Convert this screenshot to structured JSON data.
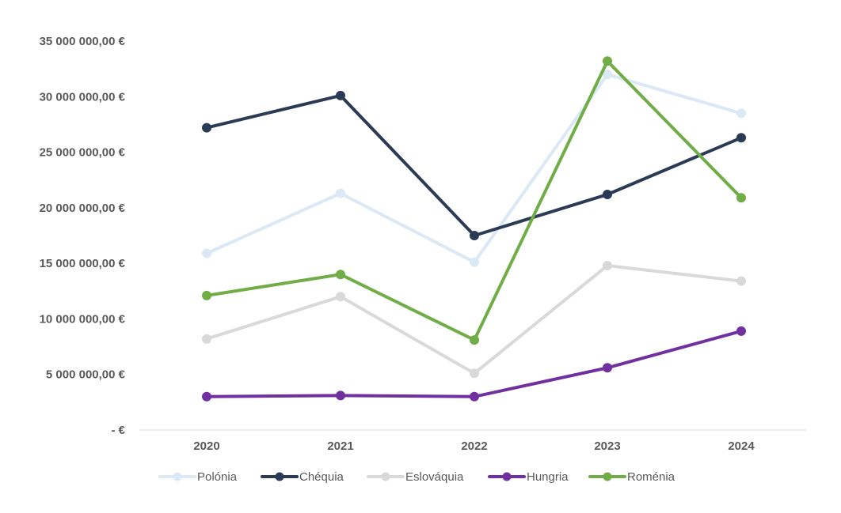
{
  "chart_data": {
    "type": "line",
    "x": [
      "2020",
      "2021",
      "2022",
      "2023",
      "2024"
    ],
    "ylim": [
      0,
      35000000
    ],
    "y_ticks": [
      0,
      5000000,
      10000000,
      15000000,
      20000000,
      25000000,
      30000000,
      35000000
    ],
    "y_tick_labels": [
      "-  €",
      "5 000 000,00 €",
      "10 000 000,00 €",
      "15 000 000,00 €",
      "20 000 000,00 €",
      "25 000 000,00 €",
      "30 000 000,00 €",
      "35 000 000,00 €"
    ],
    "grid": false,
    "legend_position": "bottom",
    "series": [
      {
        "name": "Polónia",
        "color": "#dbe8f5",
        "values": [
          15900000,
          21300000,
          15100000,
          32000000,
          28500000
        ]
      },
      {
        "name": "Chéquia",
        "color": "#2b3a55",
        "values": [
          27200000,
          30100000,
          17500000,
          21200000,
          26300000
        ]
      },
      {
        "name": "Eslováquia",
        "color": "#d9d9d9",
        "values": [
          8200000,
          12000000,
          5100000,
          14800000,
          13400000
        ]
      },
      {
        "name": "Hungria",
        "color": "#7030a0",
        "values": [
          3000000,
          3100000,
          3000000,
          5600000,
          8900000
        ]
      },
      {
        "name": "Roménia",
        "color": "#70ad47",
        "values": [
          12100000,
          14000000,
          8100000,
          33200000,
          20900000
        ]
      }
    ]
  }
}
